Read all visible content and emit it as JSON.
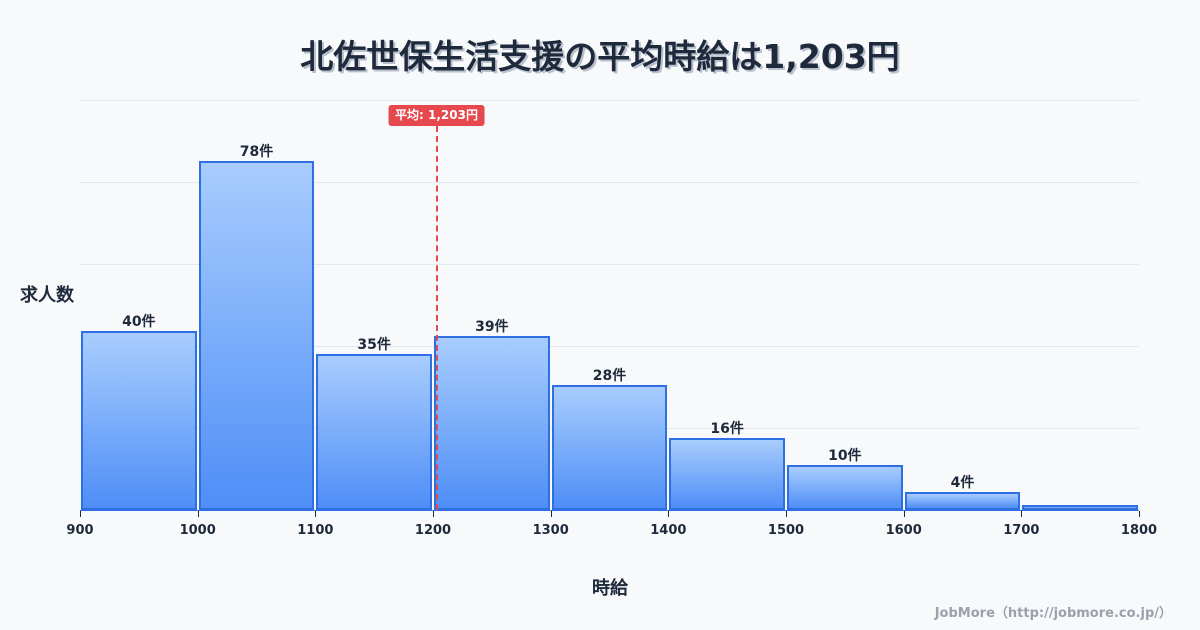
{
  "title": "北佐世保生活支援の平均時給は1,203円",
  "mean_badge": "平均: 1,203円",
  "ylabel": "求人数",
  "xlabel": "時給",
  "credit": "JobMore（http://jobmore.co.jp/）",
  "colors": {
    "bar_border": "#2f6fe4",
    "bar_top": "#a8cdfd",
    "bar_bottom": "#4f8ef7",
    "mean_line": "#e5484d",
    "text": "#1e293b",
    "grid": "#e3e7ee"
  },
  "chart_data": {
    "type": "bar",
    "title": "北佐世保生活支援の平均時給は1,203円",
    "xlabel": "時給",
    "ylabel": "求人数",
    "categories": [
      "900-1000",
      "1000-1100",
      "1100-1200",
      "1200-1300",
      "1300-1400",
      "1400-1500",
      "1500-1600",
      "1600-1700",
      "1700-1800"
    ],
    "bin_edges": [
      900,
      1000,
      1100,
      1200,
      1300,
      1400,
      1500,
      1600,
      1700,
      1800
    ],
    "values": [
      40,
      78,
      35,
      39,
      28,
      16,
      10,
      4,
      1
    ],
    "value_labels": [
      "40件",
      "78件",
      "35件",
      "39件",
      "28件",
      "16件",
      "10件",
      "4件",
      ""
    ],
    "x_tick_labels": [
      "900",
      "1000",
      "1100",
      "1200",
      "1300",
      "1400",
      "1500",
      "1600",
      "1700",
      "1800"
    ],
    "xlim": [
      900,
      1800
    ],
    "ylim": [
      0,
      91.7
    ],
    "grid": true,
    "mean": 1203,
    "mean_label": "平均: 1,203円",
    "legend": null
  }
}
